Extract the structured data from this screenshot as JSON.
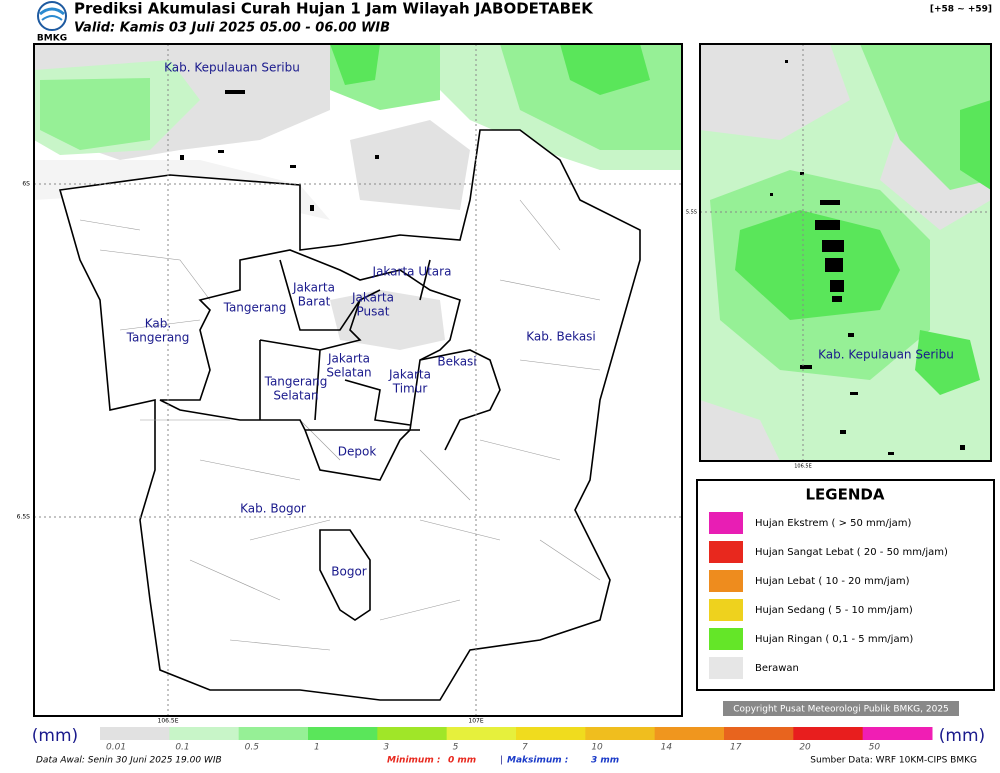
{
  "header": {
    "logo_text": "BMKG",
    "title": "Prediksi Akumulasi Curah Hujan 1 Jam Wilayah JABODETABEK",
    "subtitle": "Valid: Kamis 03 Juli 2025 05.00 - 06.00 WIB",
    "run_offset": "[+58 ~ +59]"
  },
  "main_map": {
    "regions": [
      {
        "lines": [
          "Kab. Kepulauan Seribu"
        ]
      },
      {
        "lines": [
          "Jakarta Utara"
        ]
      },
      {
        "lines": [
          "Jakarta",
          "Barat"
        ]
      },
      {
        "lines": [
          "Jakarta",
          "Pusat"
        ]
      },
      {
        "lines": [
          "Tangerang"
        ]
      },
      {
        "lines": [
          "Kab.",
          "Tangerang"
        ]
      },
      {
        "lines": [
          "Kab. Bekasi"
        ]
      },
      {
        "lines": [
          "Jakarta",
          "Selatan"
        ]
      },
      {
        "lines": [
          "Bekasi"
        ]
      },
      {
        "lines": [
          "Jakarta",
          "Timur"
        ]
      },
      {
        "lines": [
          "Tangerang",
          "Selatan"
        ]
      },
      {
        "lines": [
          "Depok"
        ]
      },
      {
        "lines": [
          "Kab. Bogor"
        ]
      },
      {
        "lines": [
          "Bogor"
        ]
      }
    ],
    "lat_labels": [
      "6S",
      "6.5S"
    ],
    "lon_labels": [
      "106.5E",
      "107E"
    ]
  },
  "inset_map": {
    "region": "Kab. Kepulauan Seribu",
    "lat_label": "5.5S",
    "lon_label": "106.5E"
  },
  "legend": {
    "title": "LEGENDA",
    "items": [
      {
        "label": "Hujan Ekstrem ( > 50 mm/jam)",
        "color": "#e81eb4"
      },
      {
        "label": "Hujan Sangat Lebat ( 20 - 50 mm/jam)",
        "color": "#e8281e"
      },
      {
        "label": "Hujan Lebat ( 10 - 20 mm/jam)",
        "color": "#ee8c1e"
      },
      {
        "label": "Hujan Sedang ( 5 - 10 mm/jam)",
        "color": "#eed21e"
      },
      {
        "label": "Hujan Ringan ( 0,1 - 5 mm/jam)",
        "color": "#64e628"
      },
      {
        "label": "Berawan",
        "color": "#e6e6e6"
      }
    ]
  },
  "copyright": "Copyright Pusat Meteorologi Publik BMKG, 2025",
  "colorbar": {
    "unit": "(mm)",
    "steps": [
      {
        "label": "0.01",
        "color": "#e1e1e1"
      },
      {
        "label": "0.1",
        "color": "#c8f5c8"
      },
      {
        "label": "0.5",
        "color": "#96f096"
      },
      {
        "label": "1",
        "color": "#5ae65a"
      },
      {
        "label": "3",
        "color": "#a0e628"
      },
      {
        "label": "5",
        "color": "#e6f03c"
      },
      {
        "label": "7",
        "color": "#f0dc1e"
      },
      {
        "label": "10",
        "color": "#f0be1e"
      },
      {
        "label": "14",
        "color": "#f0961e"
      },
      {
        "label": "17",
        "color": "#e8641e"
      },
      {
        "label": "20",
        "color": "#e81e1e"
      },
      {
        "label": "50",
        "color": "#f01eb4"
      }
    ]
  },
  "footer": {
    "data_awal": "Data Awal: Senin 30 Juni 2025 19.00 WIB",
    "min_label": "Minimum :",
    "min_value": "0 mm",
    "separator": "|",
    "max_label": "Maksimum :",
    "max_value": "3 mm",
    "source": "Sumber Data: WRF 10KM-CIPS BMKG"
  }
}
